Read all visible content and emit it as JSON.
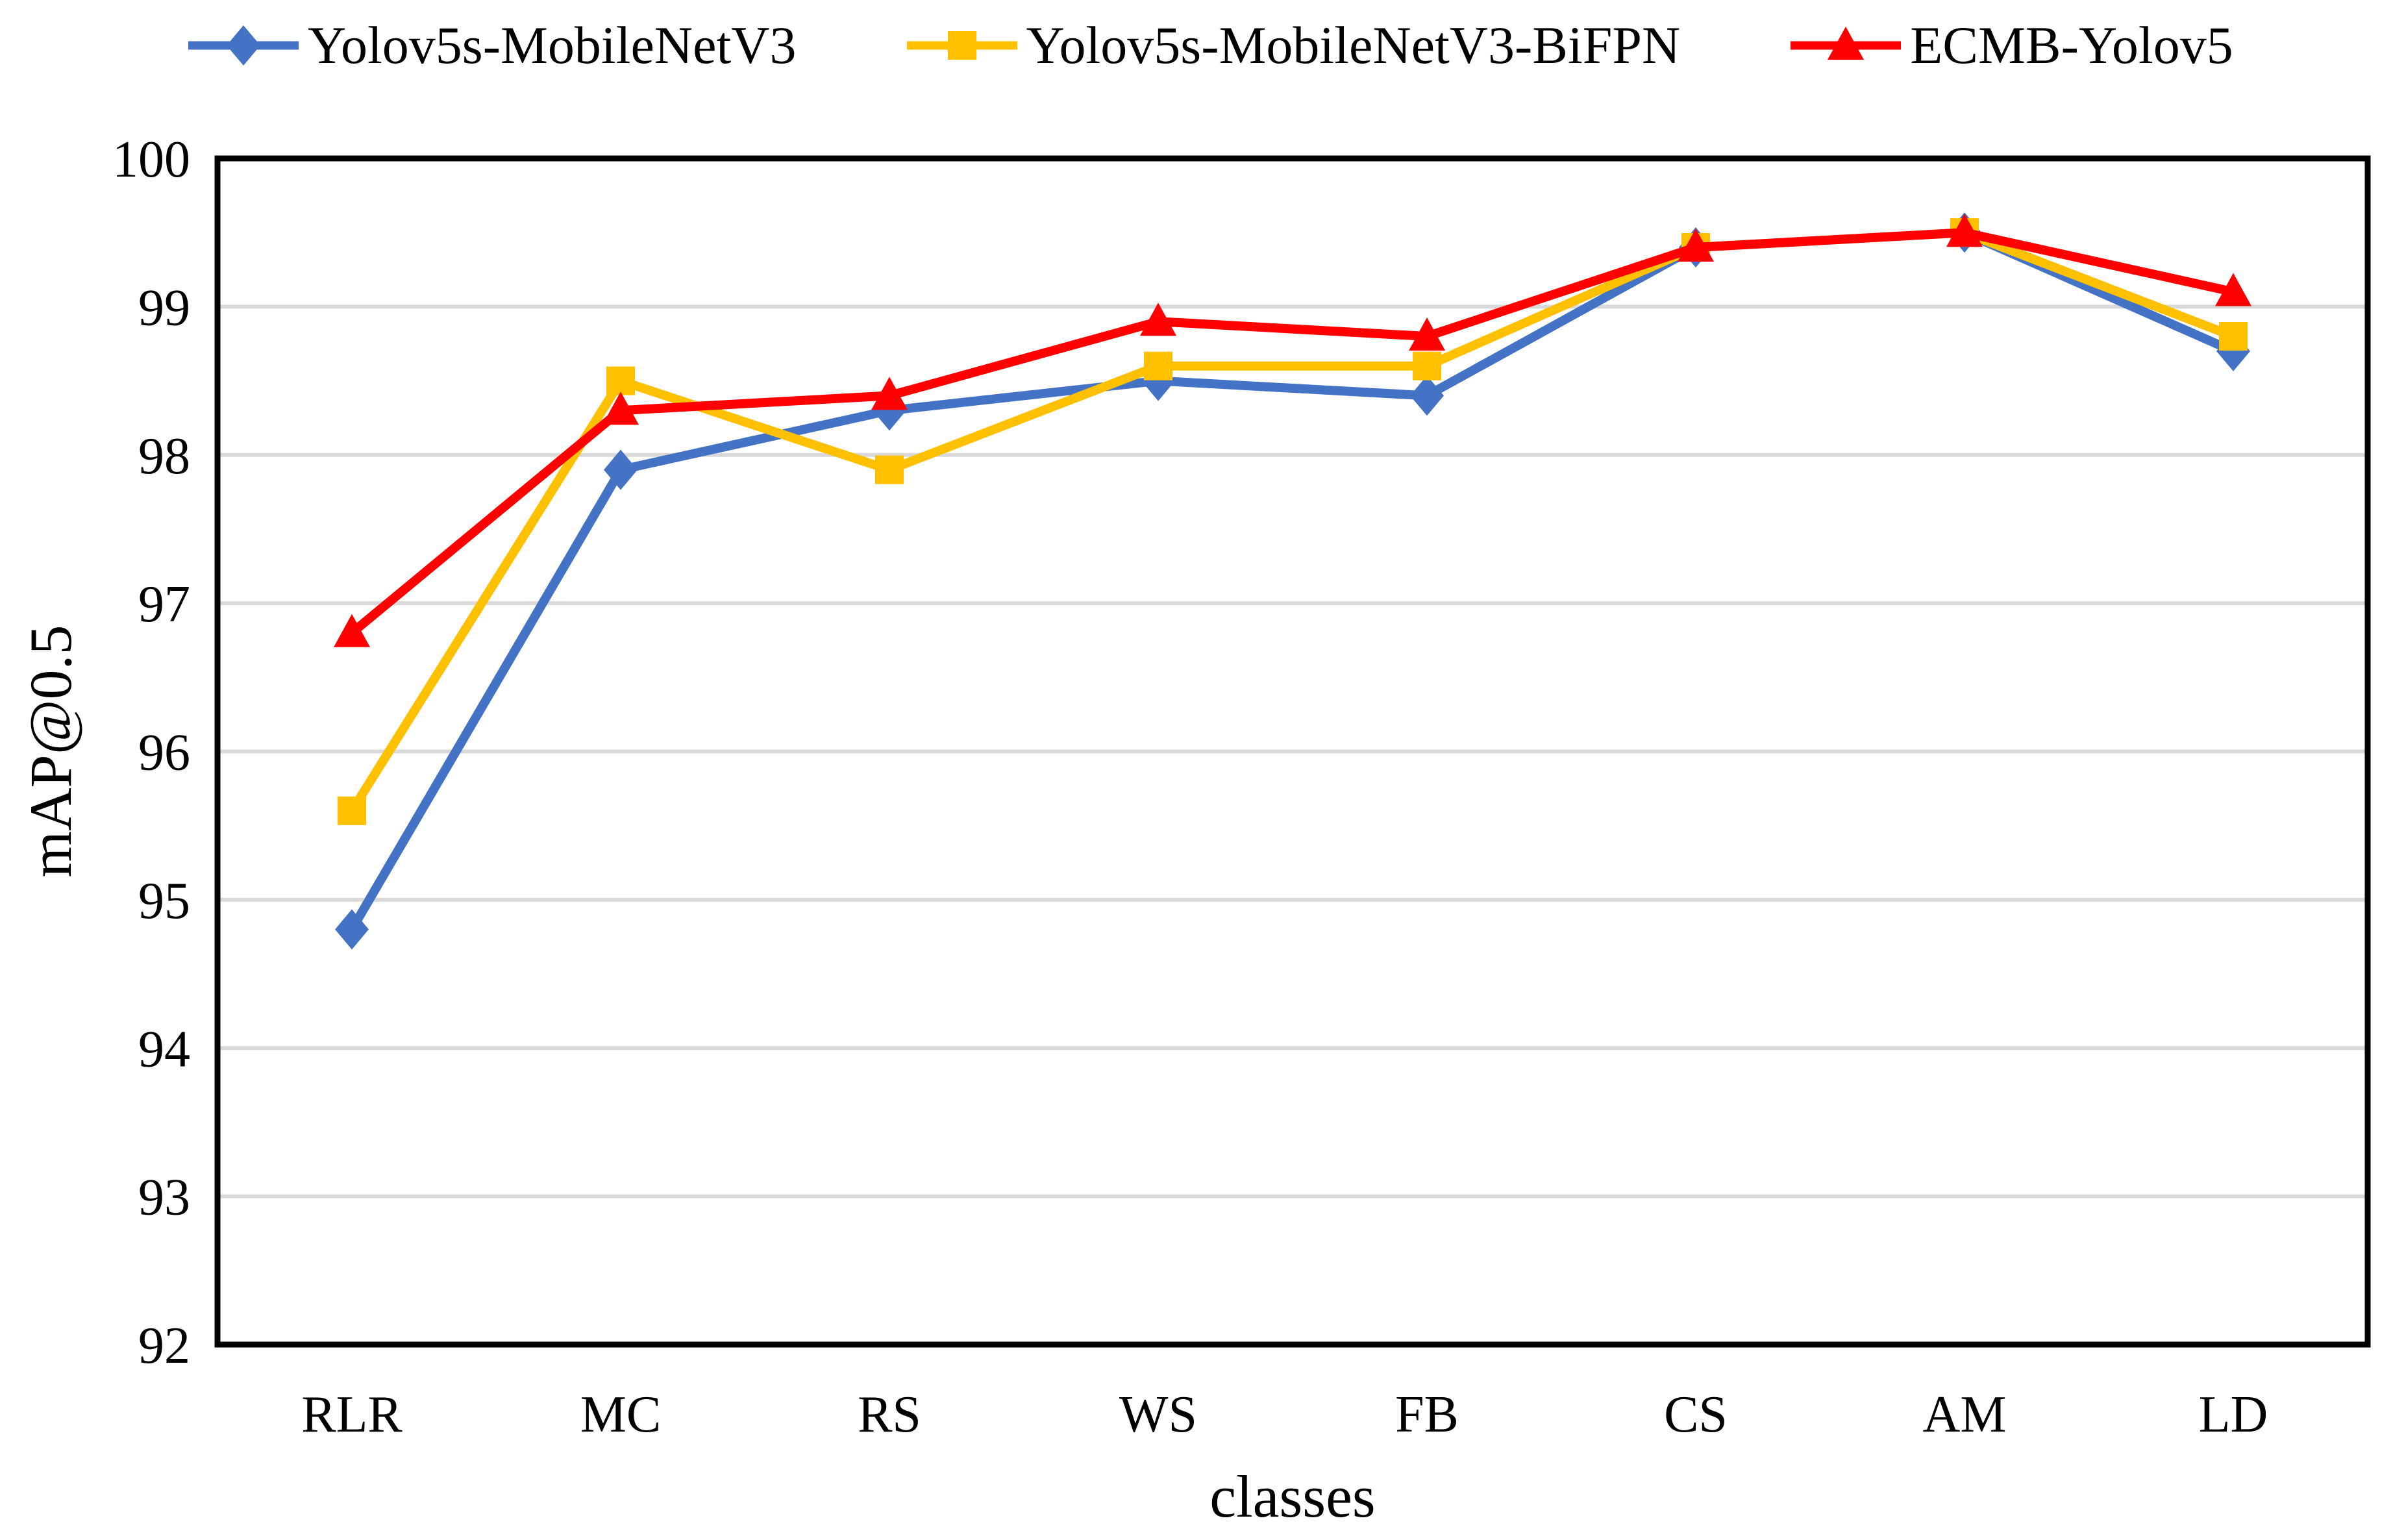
{
  "chart_data": {
    "type": "line",
    "title": "",
    "xlabel": "classes",
    "ylabel": "mAP@0.5",
    "categories": [
      "RLR",
      "MC",
      "RS",
      "WS",
      "FB",
      "CS",
      "AM",
      "LD"
    ],
    "series": [
      {
        "name": "Yolov5s-MobileNetV3",
        "color": "#4472C4",
        "marker": "diamond",
        "values": [
          94.8,
          97.9,
          98.3,
          98.5,
          98.4,
          99.4,
          99.5,
          98.7
        ]
      },
      {
        "name": "Yolov5s-MobileNetV3-BiFPN",
        "color": "#FFC000",
        "marker": "square",
        "values": [
          95.6,
          98.5,
          97.9,
          98.6,
          98.6,
          99.4,
          99.5,
          98.8
        ]
      },
      {
        "name": "ECMB-Yolov5",
        "color": "#FF0000",
        "marker": "triangle",
        "values": [
          96.8,
          98.3,
          98.4,
          98.9,
          98.8,
          99.4,
          99.5,
          99.1
        ]
      }
    ],
    "ylim": [
      92,
      100
    ],
    "y_ticks": [
      100,
      99,
      98,
      97,
      96,
      95,
      94,
      93,
      92
    ],
    "grid": true,
    "legend_position": "top"
  },
  "colors": {
    "gridline": "#D9D9D9",
    "frame": "#000000",
    "background": "#FFFFFF"
  }
}
